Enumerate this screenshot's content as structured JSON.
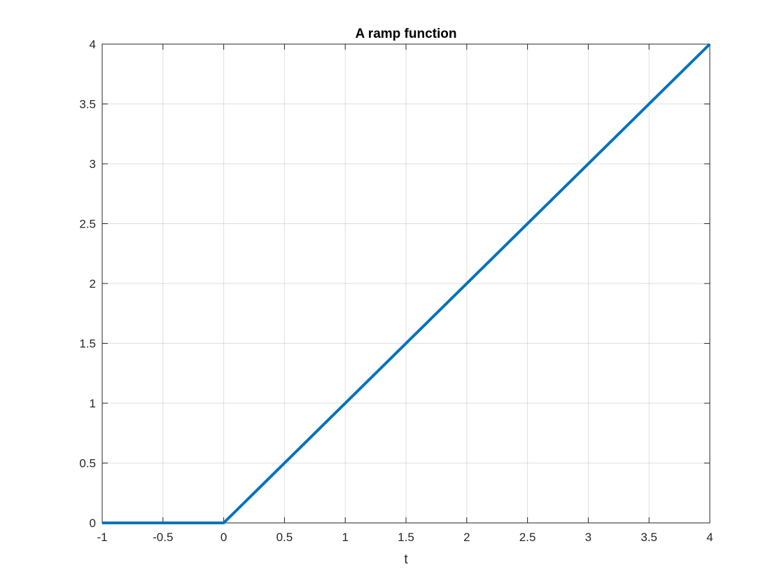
{
  "chart_data": {
    "type": "line",
    "title": "A ramp function",
    "xlabel": "t",
    "ylabel": "",
    "xlim": [
      -1,
      4
    ],
    "ylim": [
      0,
      4
    ],
    "xticks": [
      -1,
      -0.5,
      0,
      0.5,
      1,
      1.5,
      2,
      2.5,
      3,
      3.5,
      4
    ],
    "xtick_labels": [
      "-1",
      "-0.5",
      "0",
      "0.5",
      "1",
      "1.5",
      "2",
      "2.5",
      "3",
      "3.5",
      "4"
    ],
    "yticks": [
      0,
      0.5,
      1,
      1.5,
      2,
      2.5,
      3,
      3.5,
      4
    ],
    "ytick_labels": [
      "0",
      "0.5",
      "1",
      "1.5",
      "2",
      "2.5",
      "3",
      "3.5",
      "4"
    ],
    "grid": true,
    "series": [
      {
        "x": [
          -1,
          0,
          4
        ],
        "y": [
          0,
          0,
          4
        ],
        "color": "#0072BD"
      }
    ]
  }
}
